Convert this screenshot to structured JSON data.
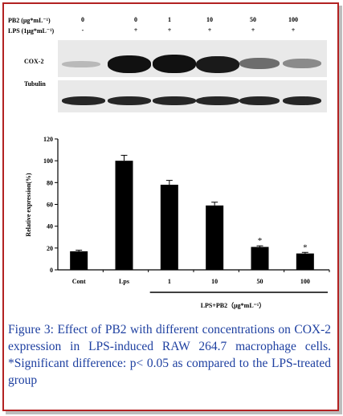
{
  "blot": {
    "pb2_label": "PB2 (μg*mL⁻¹)",
    "lps_label": "LPS (1μg*mL⁻¹)",
    "pb2_values": [
      "0",
      "0",
      "1",
      "10",
      "50",
      "100"
    ],
    "lps_values": [
      "-",
      "+",
      "+",
      "+",
      "+",
      "+"
    ],
    "cox2_label": "COX-2",
    "tubulin_label": "Tubulin"
  },
  "chart_data": {
    "type": "bar",
    "categories": [
      "Cont",
      "Lps",
      "1",
      "10",
      "50",
      "100"
    ],
    "values": [
      17,
      100,
      78,
      59,
      21,
      15
    ],
    "errors": [
      1,
      5,
      4,
      3,
      1,
      1
    ],
    "significance": [
      "",
      "",
      "",
      "",
      "*",
      "*"
    ],
    "ylabel": "Relative expression(%)",
    "yticks": [
      "0",
      "20",
      "40",
      "60",
      "80",
      "100",
      "120"
    ],
    "ylim": [
      0,
      120
    ],
    "group_label": "LPS+PB2（μg*mL⁻¹）",
    "bar_color": "#000000"
  },
  "caption": "Figure 3: Effect of PB2 with different concentrations on COX-2 expression in LPS-induced RAW 264.7 macrophage cells. *Significant difference: p< 0.05 as compared to the LPS-treated group"
}
